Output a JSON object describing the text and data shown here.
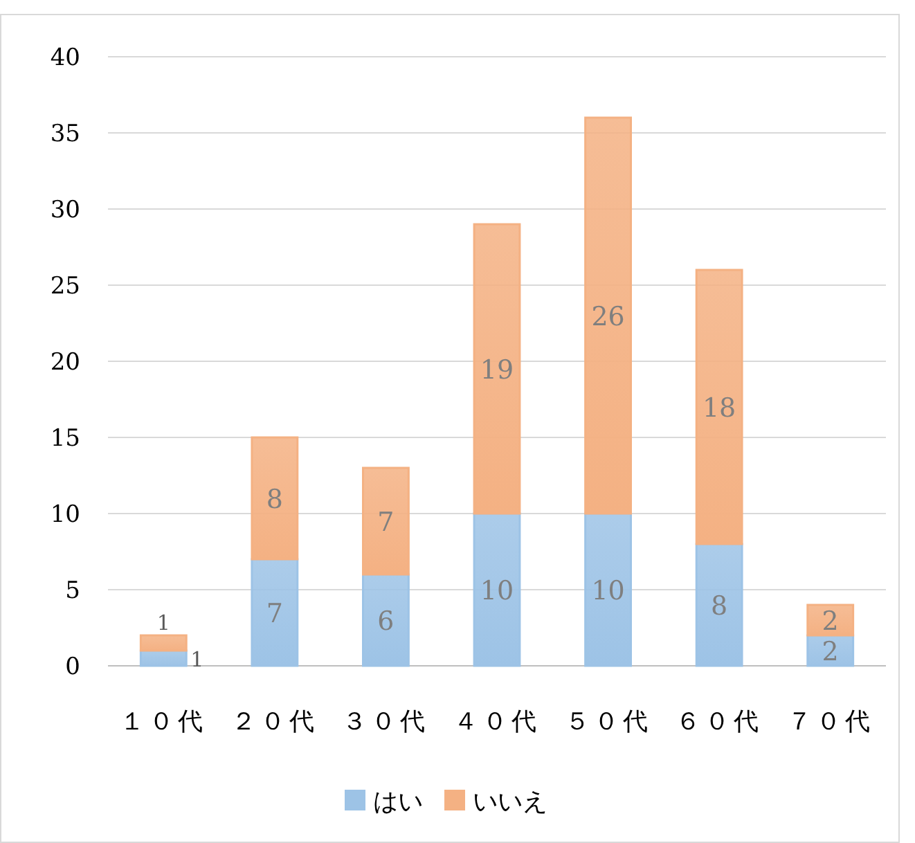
{
  "chart_data": {
    "type": "bar",
    "stacked": true,
    "categories": [
      "１０代",
      "２０代",
      "３０代",
      "４０代",
      "５０代",
      "６０代",
      "７０代"
    ],
    "series": [
      {
        "name": "はい",
        "color": "#9dc3e6",
        "values": [
          1,
          7,
          6,
          10,
          10,
          8,
          2
        ]
      },
      {
        "name": "いいえ",
        "color": "#f4b183",
        "values": [
          1,
          8,
          7,
          19,
          26,
          18,
          2
        ]
      }
    ],
    "ylim": [
      0,
      40
    ],
    "yticks": [
      0,
      5,
      10,
      15,
      20,
      25,
      30,
      35,
      40
    ],
    "grid": "y",
    "legend": "bottom",
    "data_labels": true
  }
}
